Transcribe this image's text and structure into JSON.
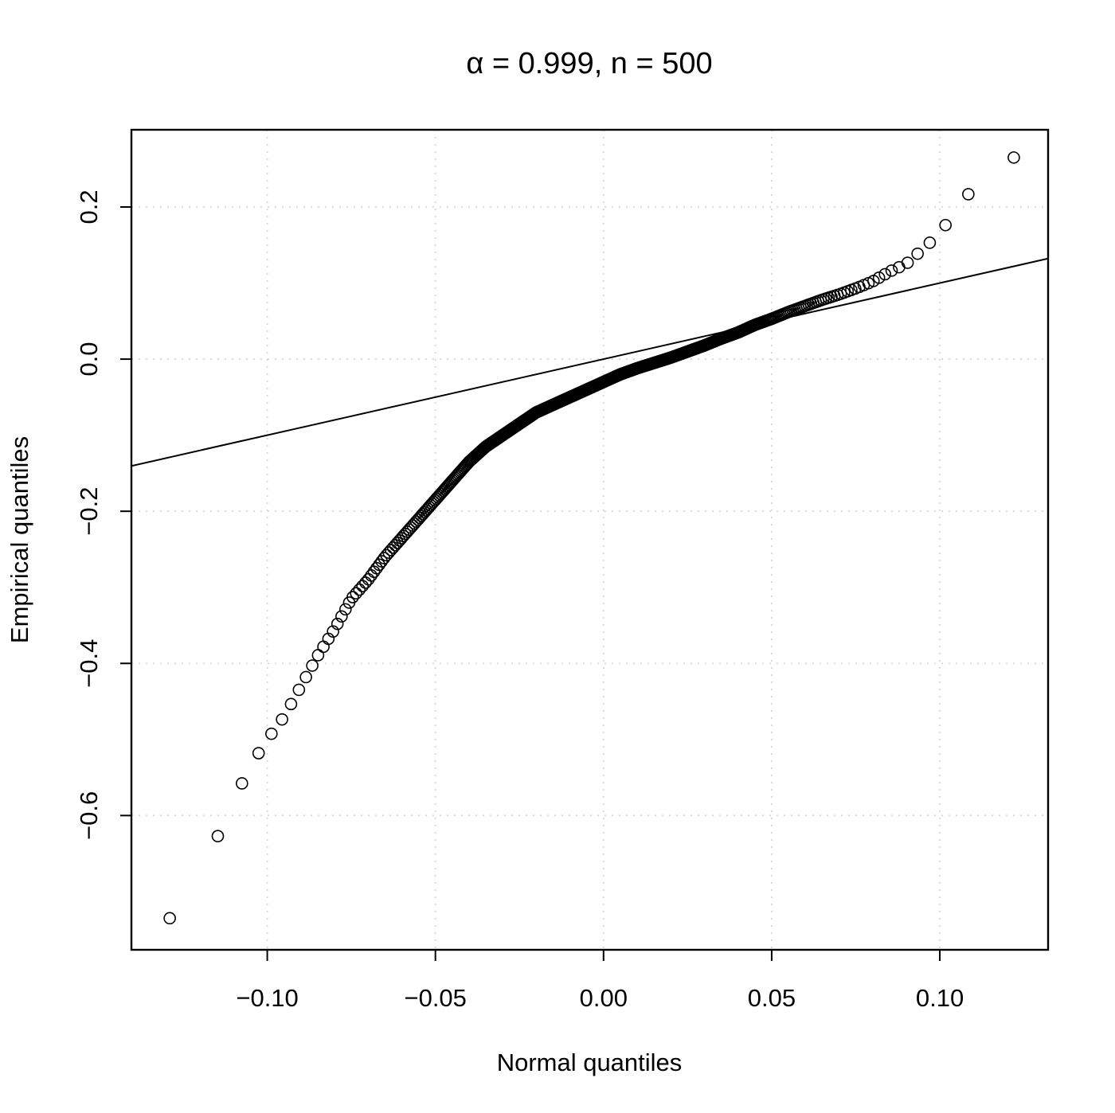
{
  "chart_data": {
    "type": "scatter",
    "title": "α = 0.999, n = 500",
    "xlabel": "Normal quantiles",
    "ylabel": "Empirical quantiles",
    "xlim": [
      -0.1404,
      0.1322
    ],
    "ylim": [
      -0.7765,
      0.3015
    ],
    "x_ticks": [
      -0.1,
      -0.05,
      0.0,
      0.05,
      0.1
    ],
    "x_tick_labels": [
      "−0.10",
      "−0.05",
      "0.00",
      "0.05",
      "0.10"
    ],
    "y_ticks": [
      -0.6,
      -0.4,
      -0.2,
      0.0,
      0.2
    ],
    "y_tick_labels": [
      "−0.6",
      "−0.4",
      "−0.2",
      "0.0",
      "0.2"
    ],
    "grid": true,
    "reference_line": {
      "intercept": 0,
      "slope": 1
    },
    "n": 500,
    "quantile_curve": {
      "x": [
        -0.129,
        -0.125,
        -0.12,
        -0.115,
        -0.11,
        -0.105,
        -0.1,
        -0.095,
        -0.09,
        -0.085,
        -0.08,
        -0.075,
        -0.07,
        -0.065,
        -0.06,
        -0.055,
        -0.05,
        -0.045,
        -0.04,
        -0.035,
        -0.03,
        -0.025,
        -0.02,
        -0.015,
        -0.01,
        -0.005,
        0.0,
        0.005,
        0.01,
        0.015,
        0.02,
        0.025,
        0.03,
        0.035,
        0.04,
        0.045,
        0.05,
        0.055,
        0.06,
        0.065,
        0.07,
        0.075,
        0.08,
        0.085,
        0.09,
        0.095,
        0.1,
        0.105,
        0.11,
        0.115,
        0.12,
        0.122
      ],
      "y": [
        -0.735,
        -0.7,
        -0.685,
        -0.63,
        -0.58,
        -0.535,
        -0.5,
        -0.47,
        -0.43,
        -0.39,
        -0.355,
        -0.315,
        -0.29,
        -0.26,
        -0.235,
        -0.21,
        -0.185,
        -0.16,
        -0.135,
        -0.115,
        -0.1,
        -0.085,
        -0.07,
        -0.06,
        -0.05,
        -0.04,
        -0.03,
        -0.02,
        -0.012,
        -0.005,
        0.002,
        0.01,
        0.018,
        0.027,
        0.035,
        0.045,
        0.053,
        0.062,
        0.07,
        0.078,
        0.085,
        0.093,
        0.102,
        0.115,
        0.125,
        0.145,
        0.165,
        0.198,
        0.225,
        0.235,
        0.258,
        0.265
      ]
    }
  }
}
